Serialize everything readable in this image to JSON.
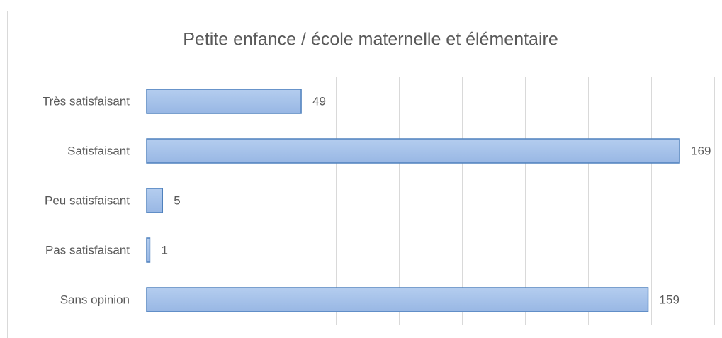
{
  "chart_data": {
    "type": "barh",
    "title": "Petite enfance / école maternelle et élémentaire",
    "categories": [
      "Très satisfaisant",
      "Satisfaisant",
      "Peu satisfaisant",
      "Pas satisfaisant",
      "Sans opinion"
    ],
    "values": [
      49,
      169,
      5,
      1,
      159
    ],
    "color": "#a7c2ea",
    "xlim": [
      0,
      180
    ],
    "xticks": [
      0,
      20,
      40,
      60,
      80,
      100,
      120,
      140,
      160,
      180
    ],
    "grid": true
  }
}
